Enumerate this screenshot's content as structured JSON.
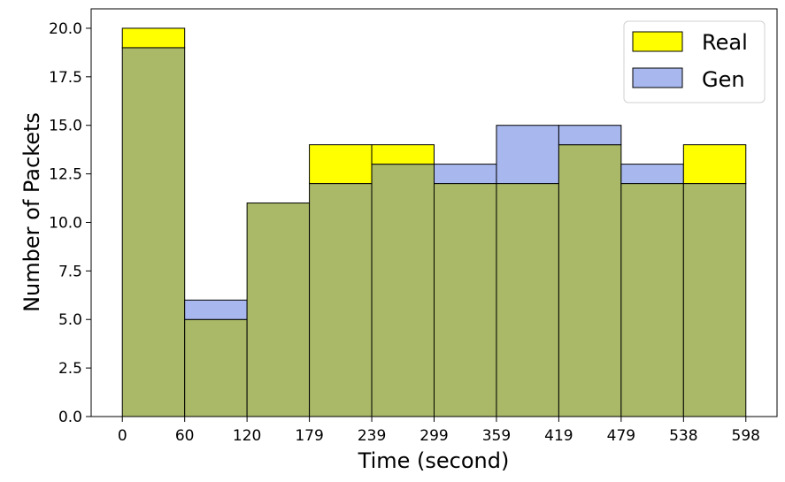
{
  "chart_data": {
    "type": "bar",
    "subtype": "overlaid-histogram",
    "xlabel": "Time (second)",
    "ylabel": "Number of Packets",
    "bin_edges": [
      0,
      60,
      120,
      179,
      239,
      299,
      359,
      419,
      479,
      538,
      598
    ],
    "x_tick_labels": [
      "0",
      "60",
      "120",
      "179",
      "239",
      "299",
      "359",
      "419",
      "479",
      "538",
      "598"
    ],
    "y_ticks": [
      0.0,
      2.5,
      5.0,
      7.5,
      10.0,
      12.5,
      15.0,
      17.5,
      20.0
    ],
    "y_tick_labels": [
      "0.0",
      "2.5",
      "5.0",
      "7.5",
      "10.0",
      "12.5",
      "15.0",
      "17.5",
      "20.0"
    ],
    "ylim": [
      0,
      21
    ],
    "xlim": [
      -0.5,
      10.5
    ],
    "series": [
      {
        "name": "Real",
        "color": "#ffff00",
        "values": [
          20,
          5,
          11,
          14,
          14,
          12,
          12,
          14,
          12,
          14
        ]
      },
      {
        "name": "Gen",
        "color": "#a8b8ee",
        "values": [
          19,
          6,
          11,
          12,
          13,
          13,
          15,
          15,
          13,
          12
        ]
      }
    ],
    "overlap_color": "#a9b967",
    "edge_color": "#000000",
    "legend": {
      "position": "top-right",
      "entries": [
        "Real",
        "Gen"
      ]
    },
    "grid": false
  }
}
